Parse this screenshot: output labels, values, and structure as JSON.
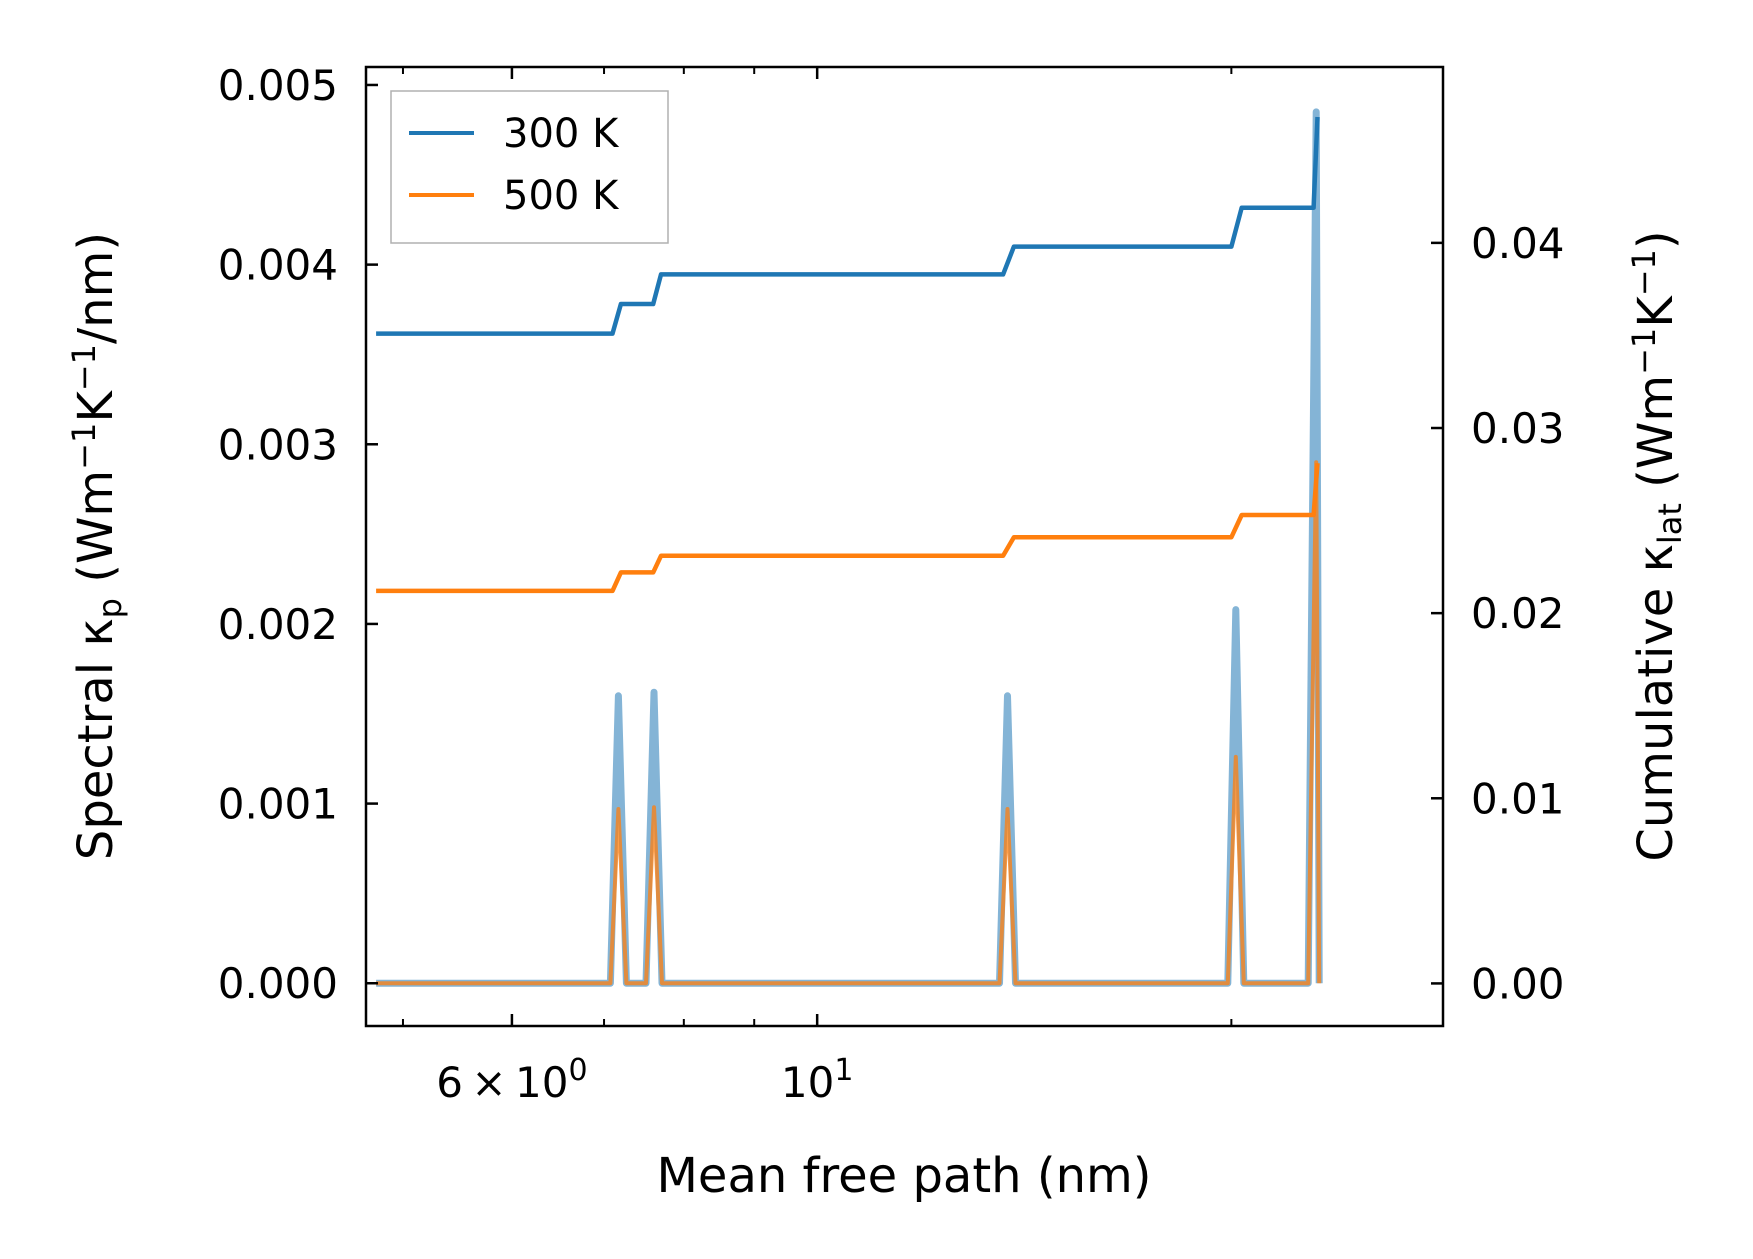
{
  "chart_data": {
    "type": "line",
    "xscale": "log",
    "xlabel": "Mean free path (nm)",
    "ylabel_left_parts": [
      "Spectral κ",
      "p",
      " (Wm",
      "−1",
      "K",
      "−1",
      "/nm)"
    ],
    "ylabel_right_parts": [
      "Cumulative κ",
      "lat",
      " (Wm",
      "−1",
      "K",
      "−1",
      ")"
    ],
    "xlim": [
      4.7,
      28.5
    ],
    "ylim_left": [
      -0.000238,
      0.0051
    ],
    "ylim_right": [
      -0.0023,
      0.0495
    ],
    "xticks_major": [
      {
        "value": 6,
        "base": "6",
        "times": "×",
        "mant": "10",
        "exp": "0"
      },
      {
        "value": 10,
        "base": "",
        "times": "",
        "mant": "10",
        "exp": "1"
      }
    ],
    "xticks_minor": [
      5,
      7,
      8,
      9,
      20
    ],
    "yticks_left": [
      {
        "value": 0.0,
        "label": "0.000"
      },
      {
        "value": 0.001,
        "label": "0.001"
      },
      {
        "value": 0.002,
        "label": "0.002"
      },
      {
        "value": 0.003,
        "label": "0.003"
      },
      {
        "value": 0.004,
        "label": "0.004"
      },
      {
        "value": 0.005,
        "label": "0.005"
      }
    ],
    "yticks_right": [
      {
        "value": 0.0,
        "label": "0.00"
      },
      {
        "value": 0.01,
        "label": "0.01"
      },
      {
        "value": 0.02,
        "label": "0.02"
      },
      {
        "value": 0.03,
        "label": "0.03"
      },
      {
        "value": 0.04,
        "label": "0.04"
      }
    ],
    "legend": {
      "location": "upper left",
      "entries": [
        "300 K",
        "500 K"
      ]
    },
    "colors": {
      "300 K": "#1f77b4",
      "500 K": "#ff7f0e"
    },
    "cumulative_series": [
      {
        "name": "300 K",
        "axis": "right",
        "x": [
          4.78,
          7.1,
          7.2,
          7.6,
          7.7,
          13.65,
          13.9,
          20.0,
          20.35,
          22.95,
          23.1
        ],
        "y": [
          0.0351,
          0.0351,
          0.0367,
          0.0367,
          0.0383,
          0.0383,
          0.0398,
          0.0398,
          0.0419,
          0.0419,
          0.0468
        ]
      },
      {
        "name": "500 K",
        "axis": "right",
        "x": [
          4.78,
          7.1,
          7.2,
          7.6,
          7.7,
          13.65,
          13.9,
          20.0,
          20.35,
          22.95,
          23.1
        ],
        "y": [
          0.0212,
          0.0212,
          0.0222,
          0.0222,
          0.0231,
          0.0231,
          0.0241,
          0.0241,
          0.0253,
          0.0253,
          0.0281
        ]
      }
    ],
    "spectral_series": [
      {
        "name": "300 K spectral",
        "axis": "left",
        "peaks": [
          {
            "x": 7.17,
            "y": 0.0016
          },
          {
            "x": 7.61,
            "y": 0.00162
          },
          {
            "x": 13.75,
            "y": 0.0016
          },
          {
            "x": 20.15,
            "y": 0.00208
          },
          {
            "x": 23.05,
            "y": 0.00485
          }
        ]
      },
      {
        "name": "500 K spectral",
        "axis": "left",
        "peaks": [
          {
            "x": 7.17,
            "y": 0.00097
          },
          {
            "x": 7.61,
            "y": 0.00098
          },
          {
            "x": 13.75,
            "y": 0.00097
          },
          {
            "x": 20.15,
            "y": 0.00126
          },
          {
            "x": 23.05,
            "y": 0.0029
          }
        ]
      }
    ],
    "spectral_x_range": [
      4.78,
      23.1
    ]
  }
}
